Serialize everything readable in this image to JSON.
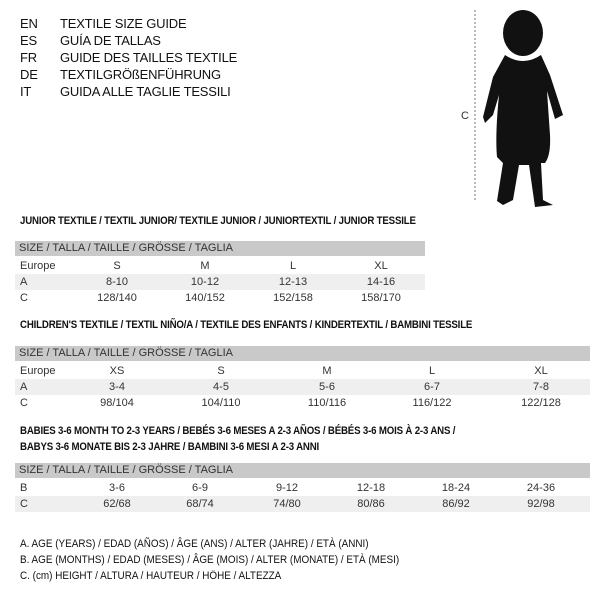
{
  "languages": [
    {
      "code": "EN",
      "text": "TEXTILE SIZE GUIDE"
    },
    {
      "code": "ES",
      "text": "GUÍA DE TALLAS"
    },
    {
      "code": "FR",
      "text": "GUIDE DES TAILLES TEXTILE"
    },
    {
      "code": "DE",
      "text": "TEXTILGRÖßENFÜHRUNG"
    },
    {
      "code": "IT",
      "text": "GUIDA ALLE TAGLIE TESSILI"
    }
  ],
  "figure": {
    "label": "C"
  },
  "size_header": "SIZE / TALLA / TAILLE / GRÖSSE / TAGLIA",
  "junior": {
    "title": "JUNIOR TEXTILE / TEXTIL JUNIOR/ TEXTILE JUNIOR / JUNIORTEXTIL / JUNIOR TESSILE",
    "rows": [
      {
        "label": "Europe",
        "values": [
          "S",
          "M",
          "L",
          "XL"
        ]
      },
      {
        "label": "A",
        "values": [
          "8-10",
          "10-12",
          "12-13",
          "14-16"
        ]
      },
      {
        "label": "C",
        "values": [
          "128/140",
          "140/152",
          "152/158",
          "158/170"
        ]
      }
    ]
  },
  "children": {
    "title": "CHILDREN'S TEXTILE / TEXTIL NIÑO/A / TEXTILE DES ENFANTS / KINDERTEXTIL / BAMBINI TESSILE",
    "rows": [
      {
        "label": "Europe",
        "values": [
          "XS",
          "S",
          "M",
          "L",
          "XL"
        ]
      },
      {
        "label": "A",
        "values": [
          "3-4",
          "4-5",
          "5-6",
          "6-7",
          "7-8"
        ]
      },
      {
        "label": "C",
        "values": [
          "98/104",
          "104/110",
          "110/116",
          "116/122",
          "122/128"
        ]
      }
    ]
  },
  "babies": {
    "title_line1": "BABIES 3-6 MONTH TO 2-3 YEARS / BEBÉS 3-6 MESES A 2-3 AÑOS / BÉBÉS 3-6 MOIS À 2-3 ANS /",
    "title_line2": "BABYS 3-6 MONATE BIS 2-3 JAHRE / BAMBINI 3-6 MESI A 2-3 ANNI",
    "rows": [
      {
        "label": "B",
        "values": [
          "3-6",
          "6-9",
          "9-12",
          "12-18",
          "18-24",
          "24-36"
        ]
      },
      {
        "label": "C",
        "values": [
          "62/68",
          "68/74",
          "74/80",
          "80/86",
          "86/92",
          "92/98"
        ]
      }
    ]
  },
  "legend": [
    "A. AGE (YEARS) / EDAD (AÑOS) / ÂGE (ANS) / ALTER (JAHRE) / ETÀ (ANNI)",
    "B. AGE (MONTHS) / EDAD (MESES) / ÂGE (MOIS) / ALTER (MONATE) / ETÀ (MESI)",
    "C. (cm) HEIGHT / ALTURA / HAUTEUR / HÖHE / ALTEZZA"
  ]
}
